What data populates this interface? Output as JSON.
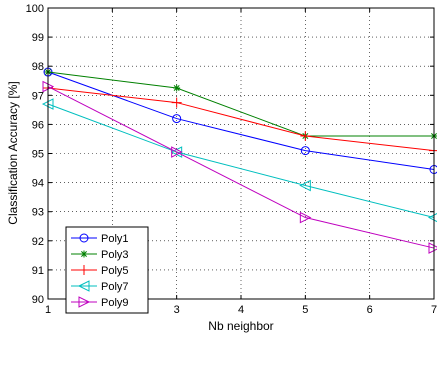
{
  "chart_data": {
    "type": "line",
    "xlabel": "Nb neighbor",
    "ylabel": "Classification Accuracy [%]",
    "xlim": [
      1,
      7
    ],
    "ylim": [
      90,
      100
    ],
    "x_ticks": [
      1,
      2,
      3,
      4,
      5,
      6,
      7
    ],
    "y_ticks": [
      90,
      91,
      92,
      93,
      94,
      95,
      96,
      97,
      98,
      99,
      100
    ],
    "grid": true,
    "legend_position": "bottom-left",
    "x": [
      1,
      3,
      5,
      7
    ],
    "series": [
      {
        "name": "Poly1",
        "color": "#0000ff",
        "marker": "circle",
        "values": [
          97.8,
          96.2,
          95.1,
          94.45
        ]
      },
      {
        "name": "Poly3",
        "color": "#008000",
        "marker": "star",
        "values": [
          97.8,
          97.25,
          95.6,
          95.6
        ]
      },
      {
        "name": "Poly5",
        "color": "#ff0000",
        "marker": "plus",
        "values": [
          97.25,
          96.75,
          95.6,
          95.1
        ]
      },
      {
        "name": "Poly7",
        "color": "#00bfbf",
        "marker": "triangle-left",
        "values": [
          96.7,
          95.05,
          93.9,
          92.8
        ]
      },
      {
        "name": "Poly9",
        "color": "#bf00bf",
        "marker": "triangle-right",
        "values": [
          97.3,
          95.05,
          92.8,
          91.75
        ]
      }
    ]
  }
}
